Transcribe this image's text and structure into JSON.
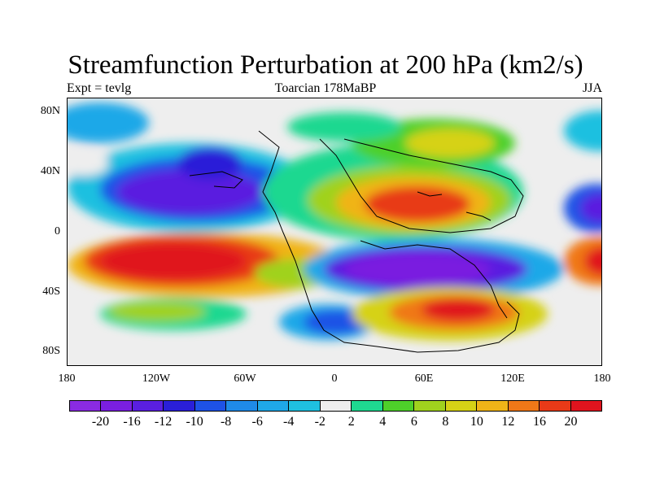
{
  "title": "Streamfunction Perturbation at 200 hPa (km2/s)",
  "subtitle_left": "Expt = tevlg",
  "subtitle_center": "Toarcian 178MaBP",
  "subtitle_right": "JJA",
  "y_ticks": [
    "80N",
    "40N",
    "0",
    "40S",
    "80S"
  ],
  "x_ticks": [
    "180",
    "120W",
    "60W",
    "0",
    "60E",
    "120E",
    "180"
  ],
  "colorbar": {
    "colors": [
      "#8a2be2",
      "#7a1fe0",
      "#5a1fe0",
      "#2a1fd8",
      "#1e52e6",
      "#1f8ae8",
      "#1fa8e8",
      "#1fc0e0",
      "#eeeeee",
      "#1fd890",
      "#4ed02a",
      "#a0d21e",
      "#d6d216",
      "#f0b418",
      "#f07818",
      "#e83a18",
      "#e0141e"
    ],
    "labels": [
      "-20",
      "-16",
      "-12",
      "-10",
      "-8",
      "-6",
      "-4",
      "-2",
      "2",
      "4",
      "6",
      "8",
      "10",
      "12",
      "16",
      "20"
    ]
  }
}
